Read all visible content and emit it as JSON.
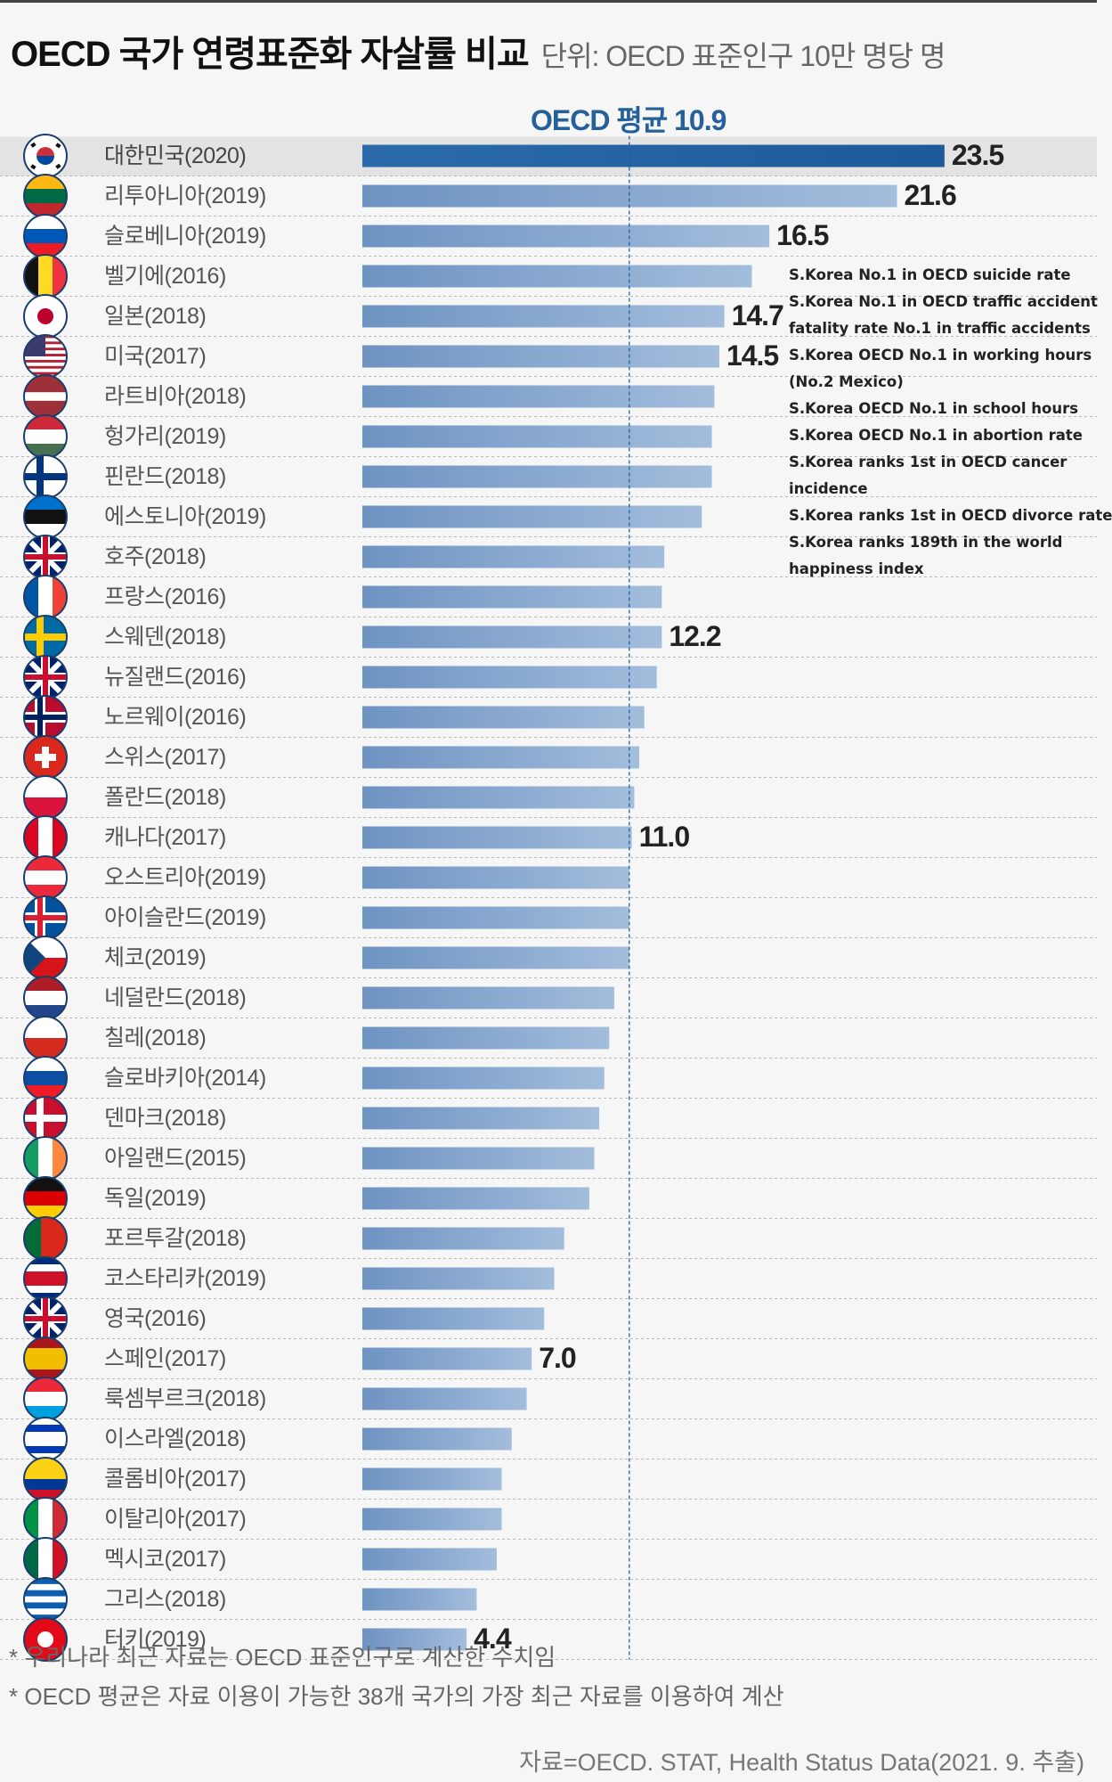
{
  "header": {
    "title": "OECD 국가 연령표준화 자살률 비교",
    "unit": "단위: OECD 표준인구 10만 명당 명",
    "average_label": "OECD 평균 10.9"
  },
  "chart_data": {
    "type": "bar",
    "orientation": "horizontal",
    "title": "OECD 국가 연령표준화 자살률 비교",
    "unit": "단위: OECD 표준인구 10만 명당 명",
    "reference_line": {
      "label": "OECD 평균 10.9",
      "value": 10.9,
      "style": "dashed"
    },
    "highlight": "대한민국(2020)",
    "colors": {
      "highlight_bar": "#1f5fa0",
      "bar": "#8eaed3",
      "bar_dark": "#6f93c0",
      "average_line": "#25609a",
      "highlight_row": "#e3e3e3"
    },
    "categories": [
      "대한민국(2020)",
      "리투아니아(2019)",
      "슬로베니아(2019)",
      "벨기에(2016)",
      "일본(2018)",
      "미국(2017)",
      "라트비아(2018)",
      "헝가리(2019)",
      "핀란드(2018)",
      "에스토니아(2019)",
      "호주(2018)",
      "프랑스(2016)",
      "스웨덴(2018)",
      "뉴질랜드(2016)",
      "노르웨이(2016)",
      "스위스(2017)",
      "폴란드(2018)",
      "캐나다(2017)",
      "오스트리아(2019)",
      "아이슬란드(2019)",
      "체코(2019)",
      "네덜란드(2018)",
      "칠레(2018)",
      "슬로바키아(2014)",
      "덴마크(2018)",
      "아일랜드(2015)",
      "독일(2019)",
      "포르투갈(2018)",
      "코스타리카(2019)",
      "영국(2016)",
      "스페인(2017)",
      "룩셈부르크(2018)",
      "이스라엘(2018)",
      "콜롬비아(2017)",
      "이탈리아(2017)",
      "멕시코(2017)",
      "그리스(2018)",
      "터키(2019)"
    ],
    "values": [
      23.5,
      21.6,
      16.5,
      15.8,
      14.7,
      14.5,
      14.3,
      14.2,
      14.2,
      13.8,
      12.3,
      12.2,
      12.2,
      12.0,
      11.5,
      11.3,
      11.1,
      11.0,
      10.9,
      10.9,
      10.9,
      10.3,
      10.1,
      9.9,
      9.7,
      9.5,
      9.3,
      8.3,
      7.9,
      7.5,
      7.0,
      6.8,
      6.2,
      5.8,
      5.8,
      5.6,
      4.8,
      4.4
    ],
    "data_labels": {
      "0": "23.5",
      "1": "21.6",
      "2": "16.5",
      "4": "14.7",
      "5": "14.5",
      "12": "12.2",
      "17": "11.0",
      "30": "7.0",
      "37": "4.4"
    },
    "xlim": [
      0,
      24
    ]
  },
  "flags": [
    {
      "t": "korea",
      "c": [
        "#ffffff",
        "#cd2e3a",
        "#0047a0"
      ]
    },
    {
      "t": "h",
      "c": [
        "#fdb913",
        "#006a44",
        "#c1272d"
      ]
    },
    {
      "t": "h",
      "c": [
        "#ffffff",
        "#0057b8",
        "#ed1c24"
      ]
    },
    {
      "t": "v",
      "c": [
        "#111111",
        "#fdda24",
        "#ef3340"
      ]
    },
    {
      "t": "dot",
      "c": [
        "#ffffff",
        "#bc002d"
      ]
    },
    {
      "t": "us",
      "c": [
        "#b22234",
        "#ffffff",
        "#3c3b6e"
      ]
    },
    {
      "t": "h",
      "c": [
        "#9e3039",
        "#9e3039",
        "#ffffff",
        "#9e3039",
        "#9e3039"
      ]
    },
    {
      "t": "h",
      "c": [
        "#ce2939",
        "#ffffff",
        "#477050"
      ]
    },
    {
      "t": "cross",
      "c": [
        "#ffffff",
        "#003580"
      ]
    },
    {
      "t": "h",
      "c": [
        "#0072ce",
        "#111111",
        "#ffffff"
      ]
    },
    {
      "t": "ensign",
      "c": [
        "#012169",
        "#c8102e",
        "#ffffff"
      ]
    },
    {
      "t": "v",
      "c": [
        "#0055a4",
        "#ffffff",
        "#ef4135"
      ]
    },
    {
      "t": "cross",
      "c": [
        "#006aa7",
        "#fecc00"
      ]
    },
    {
      "t": "ensign",
      "c": [
        "#012169",
        "#c8102e",
        "#ffffff"
      ]
    },
    {
      "t": "cross2",
      "c": [
        "#ba0c2f",
        "#ffffff",
        "#00205b"
      ]
    },
    {
      "t": "swiss",
      "c": [
        "#da291c",
        "#ffffff"
      ]
    },
    {
      "t": "h",
      "c": [
        "#ffffff",
        "#dc143c"
      ]
    },
    {
      "t": "v",
      "c": [
        "#d80621",
        "#ffffff",
        "#d80621"
      ]
    },
    {
      "t": "h",
      "c": [
        "#ed2939",
        "#ffffff",
        "#ed2939"
      ]
    },
    {
      "t": "cross2",
      "c": [
        "#02529c",
        "#ffffff",
        "#dc1e35"
      ]
    },
    {
      "t": "czech",
      "c": [
        "#ffffff",
        "#d7141a",
        "#11457e"
      ]
    },
    {
      "t": "h",
      "c": [
        "#ae1c28",
        "#ffffff",
        "#21468b"
      ]
    },
    {
      "t": "h",
      "c": [
        "#ffffff",
        "#d52b1e"
      ]
    },
    {
      "t": "h",
      "c": [
        "#ffffff",
        "#0b4ea2",
        "#ee1c25"
      ]
    },
    {
      "t": "cross",
      "c": [
        "#c8102e",
        "#ffffff"
      ]
    },
    {
      "t": "v",
      "c": [
        "#169b62",
        "#ffffff",
        "#ff883e"
      ]
    },
    {
      "t": "h",
      "c": [
        "#111111",
        "#dd0000",
        "#ffce00"
      ]
    },
    {
      "t": "v",
      "c": [
        "#046a38",
        "#046a38",
        "#da291c",
        "#da291c",
        "#da291c"
      ]
    },
    {
      "t": "h",
      "c": [
        "#002b7f",
        "#ffffff",
        "#ce1126",
        "#ce1126",
        "#ffffff",
        "#002b7f"
      ]
    },
    {
      "t": "ensign",
      "c": [
        "#012169",
        "#c8102e",
        "#ffffff"
      ]
    },
    {
      "t": "h",
      "c": [
        "#aa151b",
        "#f1bf00",
        "#f1bf00",
        "#aa151b"
      ]
    },
    {
      "t": "h",
      "c": [
        "#ed2939",
        "#ffffff",
        "#00a1de"
      ]
    },
    {
      "t": "h",
      "c": [
        "#ffffff",
        "#0038b8",
        "#ffffff",
        "#ffffff",
        "#0038b8",
        "#ffffff"
      ]
    },
    {
      "t": "h",
      "c": [
        "#fcd116",
        "#fcd116",
        "#003893",
        "#ce1126"
      ]
    },
    {
      "t": "v",
      "c": [
        "#009246",
        "#ffffff",
        "#ce2b37"
      ]
    },
    {
      "t": "v",
      "c": [
        "#006847",
        "#ffffff",
        "#ce1126"
      ]
    },
    {
      "t": "h",
      "c": [
        "#0d5eaf",
        "#ffffff",
        "#0d5eaf",
        "#ffffff",
        "#0d5eaf",
        "#ffffff",
        "#0d5eaf"
      ]
    },
    {
      "t": "dot",
      "c": [
        "#e30a17",
        "#ffffff"
      ]
    }
  ],
  "notes": [
    "S.Korea No.1 in OECD suicide rate",
    "S.Korea No.1 in OECD traffic accident",
    "fatality rate No.1 in traffic accidents",
    "S.Korea OECD No.1 in working hours",
    "(No.2 Mexico)",
    "S.Korea OECD No.1 in school hours",
    "S.Korea OECD No.1 in abortion rate",
    "S.Korea ranks 1st in OECD cancer",
    "incidence",
    "S.Korea ranks 1st in OECD divorce rate",
    "S.Korea ranks 189th in the world",
    "happiness index"
  ],
  "footnotes": [
    "* 우리나라 최근 자료는 OECD 표준인구로 계산한 수치임",
    "* OECD 평균은 자료 이용이 가능한 38개 국가의 가장 최근 자료를 이용하여 계산"
  ],
  "source": "자료=OECD. STAT, Health Status Data(2021. 9. 추출)"
}
